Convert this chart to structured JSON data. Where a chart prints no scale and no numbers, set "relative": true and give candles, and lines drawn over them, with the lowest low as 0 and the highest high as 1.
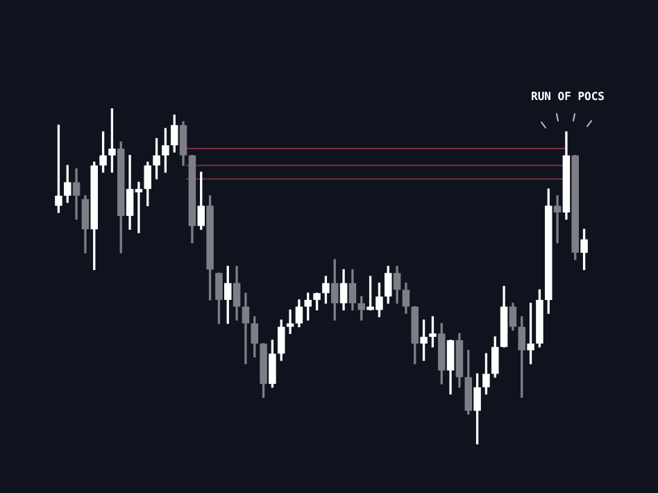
{
  "chart_data": {
    "type": "candlestick",
    "relative": true,
    "annotations": [
      "RUN OF POCS"
    ],
    "ref_lines": [
      {
        "axis": "y",
        "value": 0.88,
        "color": "#7a2d3a"
      },
      {
        "axis": "y",
        "value": 0.83,
        "color": "#7a2d3a"
      },
      {
        "axis": "y",
        "value": 0.79,
        "color": "#7a2d3a"
      }
    ],
    "categories": [
      null,
      null,
      null,
      null,
      null,
      null,
      null,
      null,
      null,
      null,
      null,
      null,
      null,
      null,
      null,
      null,
      null,
      null,
      null,
      null,
      null,
      null,
      null,
      null,
      null,
      null,
      null,
      null,
      null,
      null,
      null,
      null,
      null,
      null,
      null,
      null,
      null,
      null,
      null,
      null,
      null,
      null,
      null,
      null,
      null,
      null,
      null,
      null,
      null,
      null,
      null,
      null,
      null,
      null,
      null,
      null,
      null,
      null,
      null,
      null
    ],
    "ohlc": [
      [
        0.71,
        0.95,
        0.69,
        0.74
      ],
      [
        0.74,
        0.83,
        0.72,
        0.78
      ],
      [
        0.78,
        0.82,
        0.67,
        0.74
      ],
      [
        0.73,
        0.74,
        0.57,
        0.64
      ],
      [
        0.64,
        0.84,
        0.52,
        0.83
      ],
      [
        0.83,
        0.93,
        0.81,
        0.86
      ],
      [
        0.86,
        1,
        0.81,
        0.88
      ],
      [
        0.88,
        0.9,
        0.57,
        0.68
      ],
      [
        0.68,
        0.86,
        0.64,
        0.76
      ],
      [
        0.75,
        0.78,
        0.63,
        0.76
      ],
      [
        0.76,
        0.84,
        0.71,
        0.83
      ],
      [
        0.83,
        0.91,
        0.79,
        0.86
      ],
      [
        0.86,
        0.94,
        0.81,
        0.89
      ],
      [
        0.89,
        0.98,
        0.87,
        0.95
      ],
      [
        0.95,
        0.96,
        0.83,
        0.86
      ],
      [
        0.86,
        0.86,
        0.6,
        0.65
      ],
      [
        0.65,
        0.81,
        0.64,
        0.71
      ],
      [
        0.71,
        0.74,
        0.43,
        0.52
      ],
      [
        0.51,
        0.51,
        0.36,
        0.43
      ],
      [
        0.43,
        0.53,
        0.36,
        0.48
      ],
      [
        0.48,
        0.53,
        0.37,
        0.41
      ],
      [
        0.41,
        0.45,
        0.24,
        0.36
      ],
      [
        0.36,
        0.38,
        0.26,
        0.3
      ],
      [
        0.3,
        0.3,
        0.14,
        0.18
      ],
      [
        0.18,
        0.31,
        0.17,
        0.27
      ],
      [
        0.27,
        0.37,
        0.25,
        0.35
      ],
      [
        0.35,
        0.4,
        0.33,
        0.36
      ],
      [
        0.36,
        0.43,
        0.35,
        0.41
      ],
      [
        0.41,
        0.45,
        0.37,
        0.43
      ],
      [
        0.43,
        0.45,
        0.4,
        0.45
      ],
      [
        0.45,
        0.5,
        0.42,
        0.48
      ],
      [
        0.48,
        0.55,
        0.37,
        0.42
      ],
      [
        0.42,
        0.52,
        0.4,
        0.48
      ],
      [
        0.48,
        0.52,
        0.4,
        0.42
      ],
      [
        0.42,
        0.44,
        0.37,
        0.4
      ],
      [
        0.4,
        0.5,
        0.4,
        0.41
      ],
      [
        0.4,
        0.48,
        0.38,
        0.44
      ],
      [
        0.44,
        0.53,
        0.42,
        0.51
      ],
      [
        0.51,
        0.53,
        0.42,
        0.46
      ],
      [
        0.46,
        0.48,
        0.39,
        0.41
      ],
      [
        0.41,
        0.41,
        0.24,
        0.3
      ],
      [
        0.3,
        0.37,
        0.25,
        0.32
      ],
      [
        0.32,
        0.38,
        0.29,
        0.33
      ],
      [
        0.33,
        0.36,
        0.18,
        0.22
      ],
      [
        0.22,
        0.31,
        0.15,
        0.31
      ],
      [
        0.31,
        0.33,
        0.17,
        0.2
      ],
      [
        0.2,
        0.28,
        0.09,
        0.1
      ],
      [
        0.1,
        0.21,
        0,
        0.17
      ],
      [
        0.17,
        0.27,
        0.15,
        0.21
      ],
      [
        0.21,
        0.32,
        0.2,
        0.29
      ],
      [
        0.29,
        0.47,
        0.29,
        0.41
      ],
      [
        0.41,
        0.42,
        0.34,
        0.35
      ],
      [
        0.35,
        0.38,
        0.14,
        0.28
      ],
      [
        0.28,
        0.42,
        0.24,
        0.3
      ],
      [
        0.3,
        0.46,
        0.29,
        0.43
      ],
      [
        0.43,
        0.76,
        0.39,
        0.71
      ],
      [
        0.71,
        0.74,
        0.6,
        0.69
      ],
      [
        0.69,
        0.93,
        0.67,
        0.86
      ],
      [
        0.86,
        0.86,
        0.55,
        0.57
      ],
      [
        0.57,
        0.64,
        0.52,
        0.61
      ]
    ],
    "colors": [
      "#ffffff",
      "#ffffff",
      "#7d7f86",
      "#7d7f86",
      "#ffffff",
      "#ffffff",
      "#ffffff",
      "#7d7f86",
      "#ffffff",
      "#ffffff",
      "#ffffff",
      "#ffffff",
      "#ffffff",
      "#ffffff",
      "#7d7f86",
      "#7d7f86",
      "#ffffff",
      "#7d7f86",
      "#7d7f86",
      "#ffffff",
      "#7d7f86",
      "#7d7f86",
      "#7d7f86",
      "#7d7f86",
      "#ffffff",
      "#ffffff",
      "#ffffff",
      "#ffffff",
      "#ffffff",
      "#ffffff",
      "#ffffff",
      "#7d7f86",
      "#ffffff",
      "#7d7f86",
      "#7d7f86",
      "#ffffff",
      "#ffffff",
      "#ffffff",
      "#7d7f86",
      "#7d7f86",
      "#7d7f86",
      "#ffffff",
      "#ffffff",
      "#7d7f86",
      "#ffffff",
      "#7d7f86",
      "#7d7f86",
      "#ffffff",
      "#ffffff",
      "#ffffff",
      "#ffffff",
      "#7d7f86",
      "#7d7f86",
      "#ffffff",
      "#ffffff",
      "#ffffff",
      "#7d7f86",
      "#ffffff",
      "#7d7f86",
      "#ffffff"
    ]
  }
}
